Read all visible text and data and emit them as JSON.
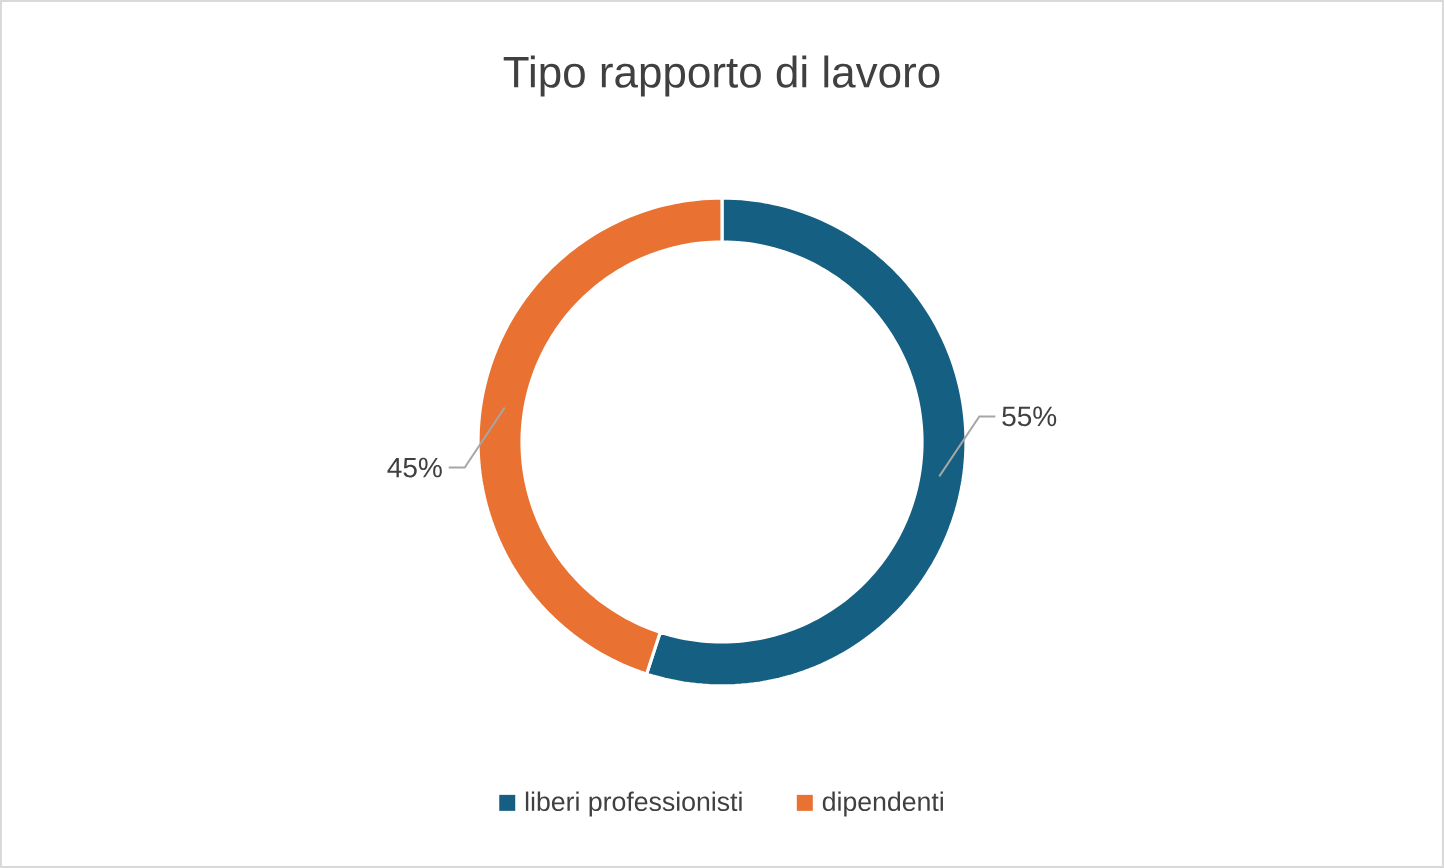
{
  "chart_data": {
    "type": "donut",
    "title": "Tipo rapporto di lavoro",
    "categories": [
      "liberi professionisti",
      "dipendenti"
    ],
    "values": [
      55,
      45
    ],
    "colors": [
      "#156082",
      "#e97132"
    ],
    "value_labels": [
      "55%",
      "45%"
    ],
    "legend": "bottom"
  }
}
